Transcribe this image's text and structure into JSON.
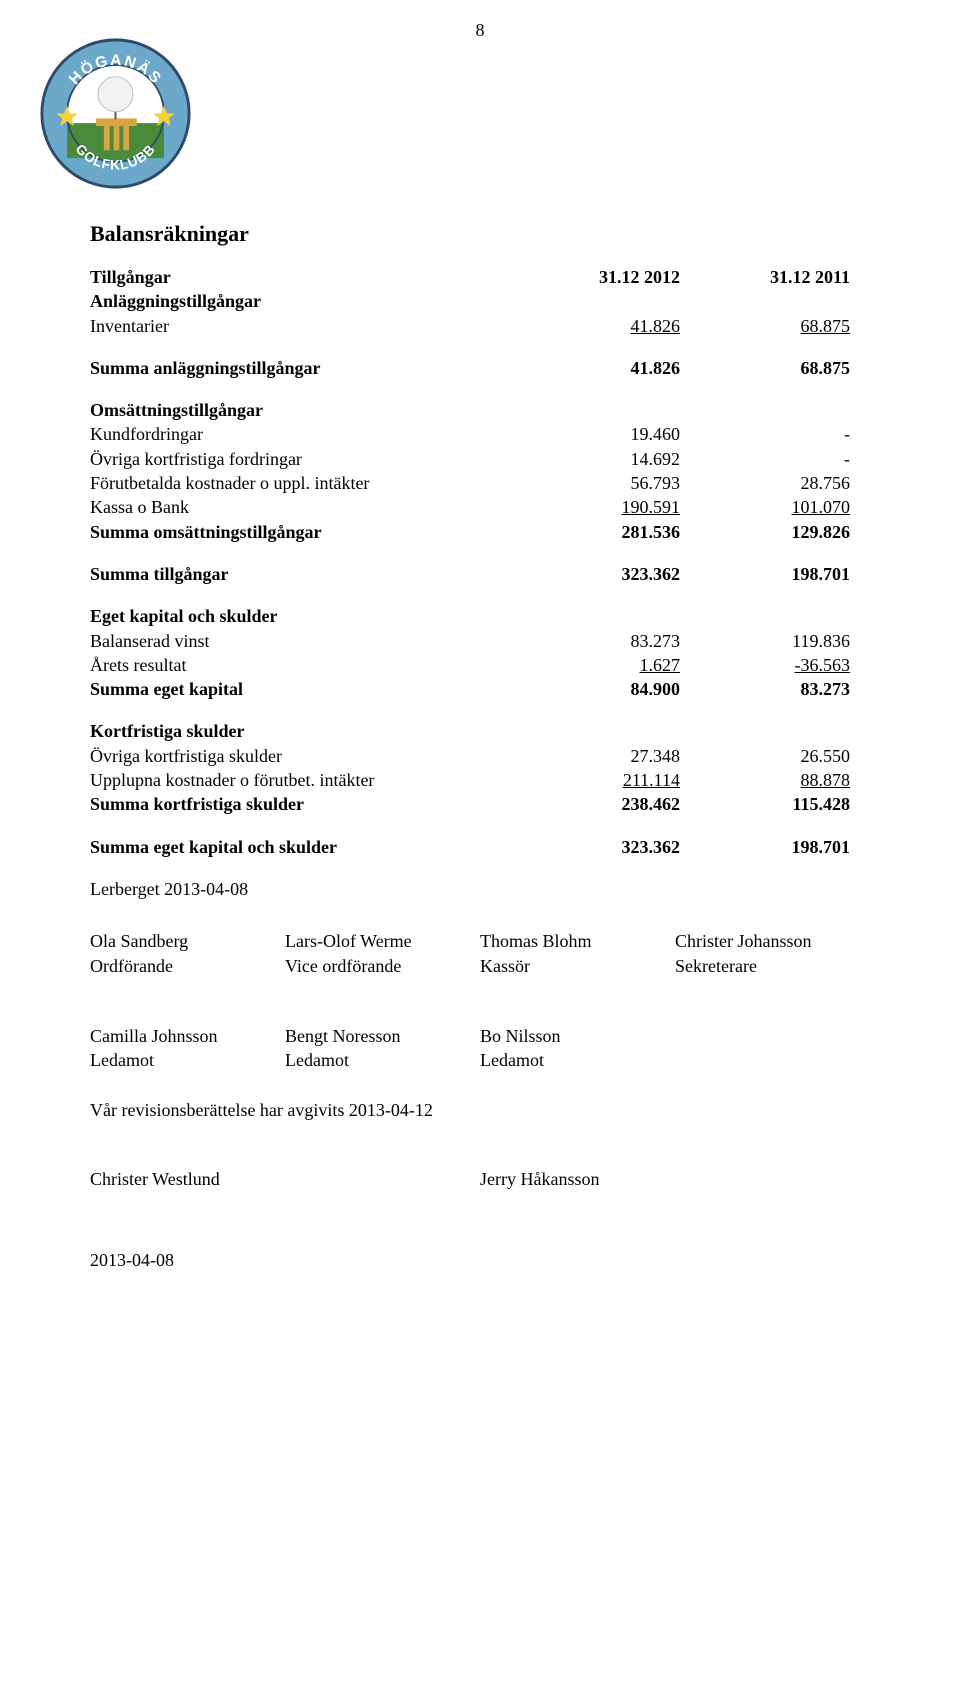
{
  "page_number": "8",
  "logo": {
    "outer_text_top": "HÖGANÄS",
    "outer_text_bottom": "GOLFKLUBB",
    "colors": {
      "ring": "#6ba8c9",
      "ring_border": "#2e4a6b",
      "text": "#ffffff",
      "star": "#f4d23a",
      "grass": "#4a8a3a",
      "sky": "#ffffff",
      "flag": "#e84c3d",
      "tee": "#d9a441",
      "ball": "#f2f2f2"
    }
  },
  "title": "Balansräkningar",
  "header": {
    "label": "Tillgångar",
    "col_a": "31.12 2012",
    "col_b": "31.12 2011"
  },
  "rows": [
    {
      "label": "Anläggningstillgångar",
      "a": "",
      "b": "",
      "bold": true
    },
    {
      "label": "Inventarier",
      "a": "41.826",
      "b": "68.875",
      "underline": true
    },
    {
      "spacer": true
    },
    {
      "label": "Summa anläggningstillgångar",
      "a": "41.826",
      "b": "68.875",
      "bold": true
    },
    {
      "spacer": true
    },
    {
      "label": "Omsättningstillgångar",
      "a": "",
      "b": "",
      "bold": true
    },
    {
      "label": "Kundfordringar",
      "a": "19.460",
      "b": "-"
    },
    {
      "label": "Övriga kortfristiga fordringar",
      "a": "14.692",
      "b": "-"
    },
    {
      "label": "Förutbetalda kostnader o uppl. intäkter",
      "a": "56.793",
      "b": "28.756"
    },
    {
      "label": "Kassa o Bank",
      "a": "190.591",
      "b": "101.070",
      "underline": true
    },
    {
      "label": "Summa omsättningstillgångar",
      "a": "281.536",
      "b": "129.826",
      "bold": true
    },
    {
      "spacer": true
    },
    {
      "label": "Summa tillgångar",
      "a": "323.362",
      "b": "198.701",
      "bold": true
    },
    {
      "spacer": true
    },
    {
      "label": "Eget kapital och skulder",
      "a": "",
      "b": "",
      "bold": true
    },
    {
      "label": "Balanserad vinst",
      "a": "83.273",
      "b": "119.836"
    },
    {
      "label": "Årets resultat",
      "a": "1.627",
      "b": "-36.563",
      "underline": true
    },
    {
      "label": "Summa eget kapital",
      "a": "84.900",
      "b": "83.273",
      "bold": true
    },
    {
      "spacer": true
    },
    {
      "label": "Kortfristiga skulder",
      "a": "",
      "b": "",
      "bold": true
    },
    {
      "label": "Övriga kortfristiga skulder",
      "a": "27.348",
      "b": "26.550"
    },
    {
      "label": "Upplupna kostnader o förutbet. intäkter",
      "a": "211.114",
      "b": "88.878",
      "underline": true
    },
    {
      "label": "Summa kortfristiga skulder",
      "a": "238.462",
      "b": "115.428",
      "bold": true
    },
    {
      "spacer": true
    },
    {
      "label": "Summa eget kapital och skulder",
      "a": "323.362",
      "b": "198.701",
      "bold": true
    }
  ],
  "place_date": "Lerberget 2013-04-08",
  "signatures_row1": [
    {
      "name": "Ola Sandberg",
      "role": "Ordförande"
    },
    {
      "name": "Lars-Olof Werme",
      "role": "Vice ordförande"
    },
    {
      "name": "Thomas Blohm",
      "role": "Kassör"
    },
    {
      "name": "Christer Johansson",
      "role": "Sekreterare"
    }
  ],
  "signatures_row2": [
    {
      "name": "Camilla Johnsson",
      "role": "Ledamot"
    },
    {
      "name": "Bengt Noresson",
      "role": "Ledamot"
    },
    {
      "name": "Bo Nilsson",
      "role": "Ledamot"
    }
  ],
  "revision_line": "Vår revisionsberättelse har avgivits 2013-04-12",
  "auditors": [
    {
      "name": "Christer Westlund"
    },
    {
      "name": "Jerry Håkansson"
    }
  ],
  "final_date": "2013-04-08"
}
